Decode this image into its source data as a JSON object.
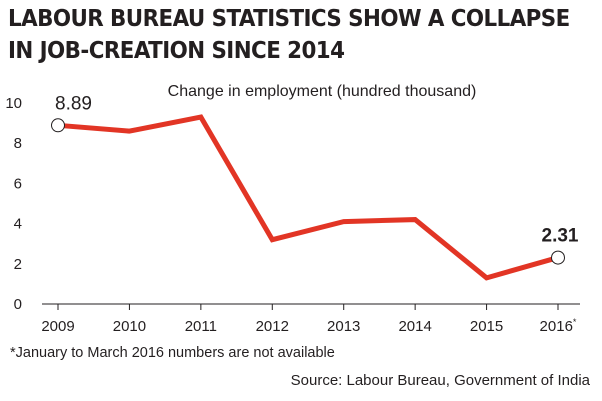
{
  "header": {
    "title_line1": "LABOUR BUREAU STATISTICS SHOW A COLLAPSE",
    "title_line2": "IN JOB-CREATION SINCE 2014"
  },
  "chart_data": {
    "type": "line",
    "title": "LABOUR BUREAU STATISTICS SHOW A COLLAPSE IN JOB-CREATION SINCE 2014",
    "subtitle": "Change in employment (hundred thousand)",
    "xlabel": "",
    "ylabel": "",
    "categories": [
      "2009",
      "2010",
      "2011",
      "2012",
      "2013",
      "2014",
      "2015",
      "2016*"
    ],
    "series": [
      {
        "name": "Change in employment",
        "values": [
          8.89,
          8.6,
          9.3,
          3.2,
          4.1,
          4.2,
          1.3,
          2.31
        ]
      }
    ],
    "ylim": [
      0,
      10
    ],
    "yticks": [
      0,
      2,
      4,
      6,
      8,
      10
    ],
    "grid": false,
    "annotations": [
      {
        "category": "2009",
        "text": "8.89"
      },
      {
        "category": "2016*",
        "text": "2.31"
      }
    ],
    "line_color": "#e23525",
    "marker_color": "#ffffff"
  },
  "footnote": "*January to March 2016 numbers are not available",
  "source": "Source: Labour Bureau, Government of India"
}
